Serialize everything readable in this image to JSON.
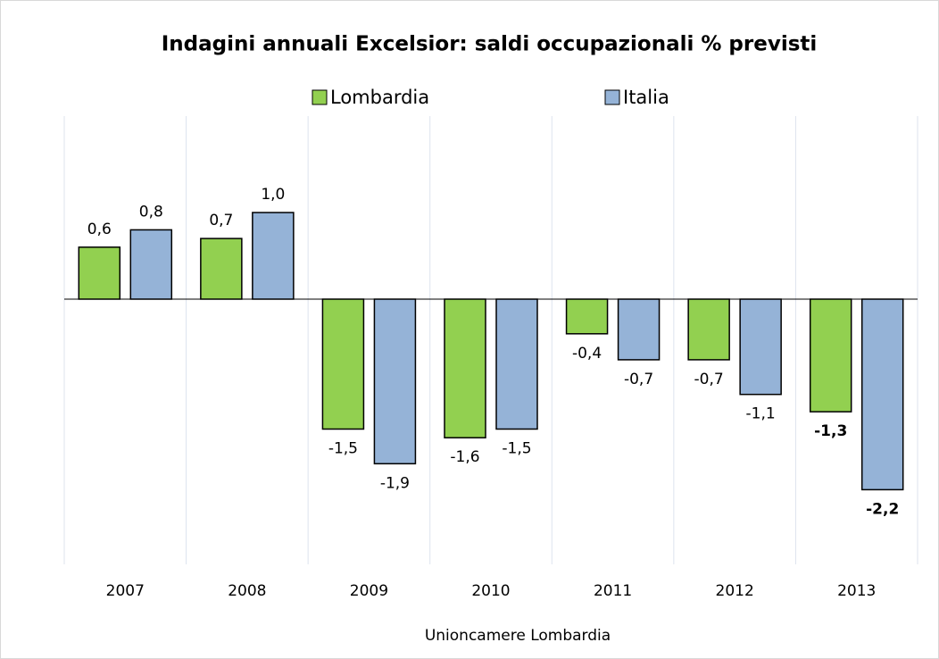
{
  "chart_data": {
    "type": "bar",
    "title": "Indagini annuali Excelsior: saldi occupazionali % previsti",
    "source": "Unioncamere Lombardia",
    "categories": [
      "2007",
      "2008",
      "2009",
      "2010",
      "2011",
      "2012",
      "2013"
    ],
    "series": [
      {
        "name": "Lombardia",
        "color": "#92d050",
        "values": [
          0.6,
          0.7,
          -1.5,
          -1.6,
          -0.4,
          -0.7,
          -1.3
        ],
        "value_labels": [
          "0,6",
          "0,7",
          "-1,5",
          "-1,6",
          "-0,4",
          "-0,7",
          "-1,3"
        ]
      },
      {
        "name": "Italia",
        "color": "#95b3d7",
        "values": [
          0.8,
          1.0,
          -1.9,
          -1.5,
          -0.7,
          -1.1,
          -2.2
        ],
        "value_labels": [
          "0,8",
          "1,0",
          "-1,9",
          "-1,5",
          "-0,7",
          "-1,1",
          "-2,2"
        ]
      }
    ],
    "ylim": [
      -3,
      2
    ],
    "legend": "top"
  }
}
